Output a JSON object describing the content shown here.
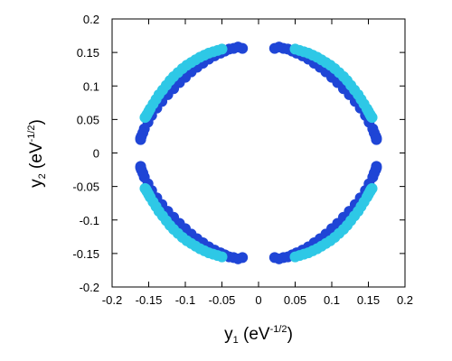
{
  "chart_data": {
    "type": "scatter",
    "title": "",
    "xlim": [
      -0.2,
      0.2
    ],
    "ylim": [
      -0.2,
      0.2
    ],
    "x_ticks": [
      "-0.2",
      "-0.15",
      "-0.1",
      "-0.05",
      "0",
      "0.05",
      "0.1",
      "0.15",
      "0.2"
    ],
    "y_ticks": [
      "0.2",
      "0.15",
      "0.1",
      "0.05",
      "0",
      "-0.05",
      "-0.1",
      "-0.15",
      "-0.2"
    ],
    "x_tick_values": [
      -0.2,
      -0.15,
      -0.1,
      -0.05,
      0,
      0.05,
      0.1,
      0.15,
      0.2
    ],
    "y_tick_values": [
      0.2,
      0.15,
      0.1,
      0.05,
      0,
      -0.05,
      -0.1,
      -0.15,
      -0.2
    ],
    "xlabel": {
      "main": "y",
      "sub": "1",
      "unit_open": " (eV",
      "sup": "-1/2",
      "unit_close": ")"
    },
    "ylabel": {
      "main": "y",
      "sub": "2",
      "unit_open": " (eV",
      "sup": "-1/2",
      "unit_close": ")"
    },
    "grid": false,
    "colors": {
      "outer_points": "#1f45d6",
      "inner_points": "#2ec8e6",
      "axes": "#000000"
    },
    "series": [
      {
        "color_key": "outer_points",
        "x": [
          0.022,
          0.028,
          0.034,
          0.04,
          0.046,
          0.052,
          0.06,
          0.068,
          0.076,
          0.084,
          0.092,
          0.1,
          0.108,
          0.116,
          0.124,
          0.132,
          0.139,
          0.146,
          0.151,
          0.156,
          0.158,
          0.16,
          0.161,
          0.161,
          -0.022,
          -0.028,
          -0.034,
          -0.04,
          -0.046,
          -0.052,
          -0.06,
          -0.068,
          -0.076,
          -0.084,
          -0.092,
          -0.1,
          -0.108,
          -0.116,
          -0.124,
          -0.132,
          -0.139,
          -0.146,
          -0.151,
          -0.156,
          -0.158,
          -0.16,
          -0.161,
          -0.161,
          0.022,
          0.028,
          0.034,
          0.04,
          0.046,
          0.052,
          0.06,
          0.068,
          0.076,
          0.084,
          0.092,
          0.1,
          0.108,
          0.116,
          0.124,
          0.132,
          0.139,
          0.146,
          0.151,
          0.156,
          0.158,
          0.16,
          0.161,
          0.161,
          -0.022,
          -0.028,
          -0.034,
          -0.04,
          -0.046,
          -0.052,
          -0.06,
          -0.068,
          -0.076,
          -0.084,
          -0.092,
          -0.1,
          -0.108,
          -0.116,
          -0.124,
          -0.132,
          -0.139,
          -0.146,
          -0.151,
          -0.156,
          -0.158,
          -0.16,
          -0.161,
          -0.161
        ],
        "y": [
          0.156,
          0.158,
          0.156,
          0.155,
          0.152,
          0.149,
          0.145,
          0.14,
          0.134,
          0.128,
          0.121,
          0.113,
          0.105,
          0.096,
          0.087,
          0.077,
          0.067,
          0.056,
          0.046,
          0.036,
          0.03,
          0.025,
          0.022,
          0.02,
          0.156,
          0.158,
          0.156,
          0.155,
          0.152,
          0.149,
          0.145,
          0.14,
          0.134,
          0.128,
          0.121,
          0.113,
          0.105,
          0.096,
          0.087,
          0.077,
          0.067,
          0.056,
          0.046,
          0.036,
          0.03,
          0.025,
          0.022,
          0.02,
          -0.156,
          -0.158,
          -0.156,
          -0.155,
          -0.152,
          -0.149,
          -0.145,
          -0.14,
          -0.134,
          -0.128,
          -0.121,
          -0.113,
          -0.105,
          -0.096,
          -0.087,
          -0.077,
          -0.067,
          -0.056,
          -0.046,
          -0.036,
          -0.03,
          -0.025,
          -0.022,
          -0.02,
          -0.156,
          -0.158,
          -0.156,
          -0.155,
          -0.152,
          -0.149,
          -0.145,
          -0.14,
          -0.134,
          -0.128,
          -0.121,
          -0.113,
          -0.105,
          -0.096,
          -0.087,
          -0.077,
          -0.067,
          -0.056,
          -0.046,
          -0.036,
          -0.03,
          -0.025,
          -0.022,
          -0.02
        ]
      },
      {
        "color_key": "inner_points",
        "x": [
          0.05,
          0.056,
          0.062,
          0.068,
          0.074,
          0.08,
          0.086,
          0.092,
          0.098,
          0.104,
          0.11,
          0.116,
          0.121,
          0.126,
          0.131,
          0.136,
          0.14,
          0.144,
          0.148,
          0.15,
          0.152,
          0.153,
          0.154,
          0.155,
          -0.05,
          -0.056,
          -0.062,
          -0.068,
          -0.074,
          -0.08,
          -0.086,
          -0.092,
          -0.098,
          -0.104,
          -0.11,
          -0.116,
          -0.121,
          -0.126,
          -0.131,
          -0.136,
          -0.14,
          -0.144,
          -0.148,
          -0.15,
          -0.152,
          -0.153,
          -0.154,
          -0.155,
          0.05,
          0.056,
          0.062,
          0.068,
          0.074,
          0.08,
          0.086,
          0.092,
          0.098,
          0.104,
          0.11,
          0.116,
          0.121,
          0.126,
          0.131,
          0.136,
          0.14,
          0.144,
          0.148,
          0.15,
          0.152,
          0.153,
          0.154,
          0.155,
          -0.05,
          -0.056,
          -0.062,
          -0.068,
          -0.074,
          -0.08,
          -0.086,
          -0.092,
          -0.098,
          -0.104,
          -0.11,
          -0.116,
          -0.121,
          -0.126,
          -0.131,
          -0.136,
          -0.14,
          -0.144,
          -0.148,
          -0.15,
          -0.152,
          -0.153,
          -0.154,
          -0.155
        ],
        "y": [
          0.155,
          0.153,
          0.151,
          0.149,
          0.146,
          0.143,
          0.139,
          0.135,
          0.131,
          0.126,
          0.12,
          0.114,
          0.108,
          0.101,
          0.094,
          0.087,
          0.08,
          0.073,
          0.066,
          0.062,
          0.058,
          0.056,
          0.054,
          0.053,
          0.155,
          0.153,
          0.151,
          0.149,
          0.146,
          0.143,
          0.139,
          0.135,
          0.131,
          0.126,
          0.12,
          0.114,
          0.108,
          0.101,
          0.094,
          0.087,
          0.08,
          0.073,
          0.066,
          0.062,
          0.058,
          0.056,
          0.054,
          0.053,
          -0.155,
          -0.153,
          -0.151,
          -0.149,
          -0.146,
          -0.143,
          -0.139,
          -0.135,
          -0.131,
          -0.126,
          -0.12,
          -0.114,
          -0.108,
          -0.101,
          -0.094,
          -0.087,
          -0.08,
          -0.073,
          -0.066,
          -0.062,
          -0.058,
          -0.056,
          -0.054,
          -0.053,
          -0.155,
          -0.153,
          -0.151,
          -0.149,
          -0.146,
          -0.143,
          -0.139,
          -0.135,
          -0.131,
          -0.126,
          -0.12,
          -0.114,
          -0.108,
          -0.101,
          -0.094,
          -0.087,
          -0.08,
          -0.073,
          -0.066,
          -0.062,
          -0.058,
          -0.056,
          -0.054,
          -0.053
        ]
      }
    ]
  }
}
